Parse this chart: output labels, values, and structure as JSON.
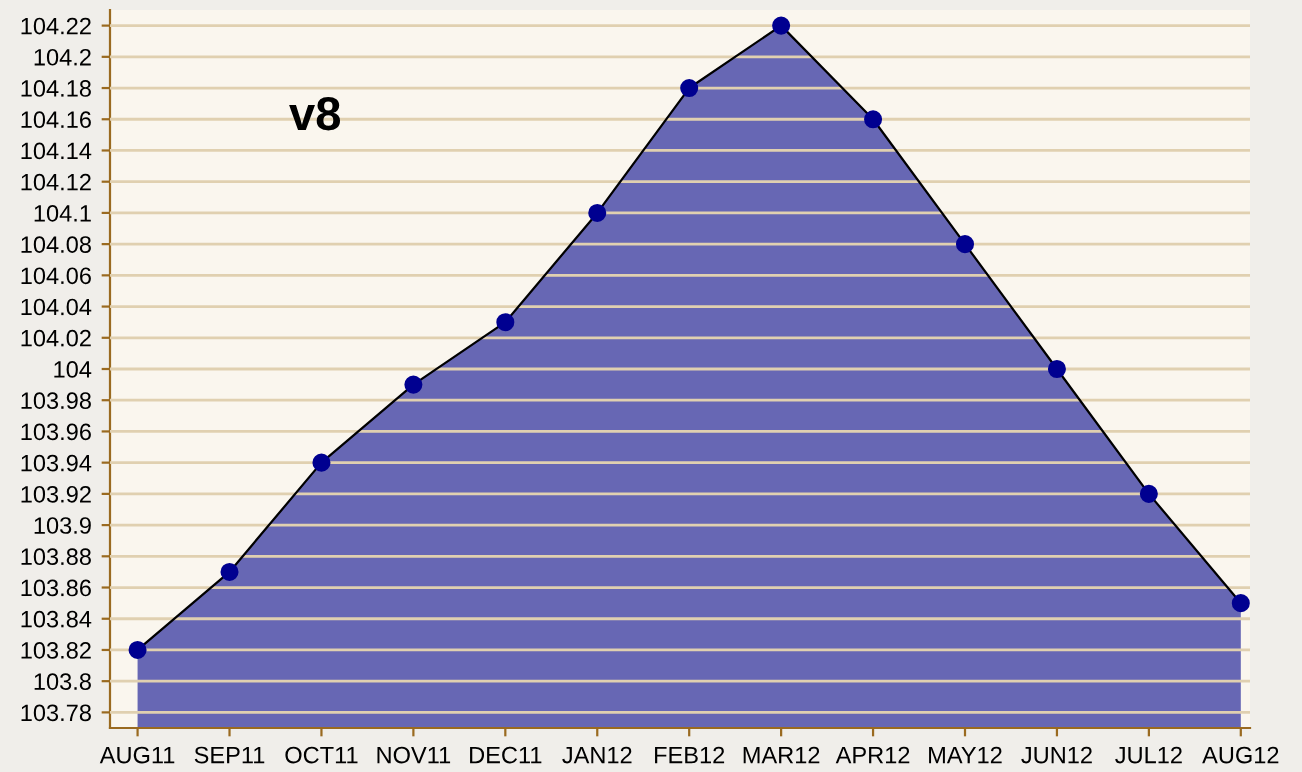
{
  "chart_data": {
    "type": "area",
    "title": "v8",
    "categories": [
      "AUG11",
      "SEP11",
      "OCT11",
      "NOV11",
      "DEC11",
      "JAN12",
      "FEB12",
      "MAR12",
      "APR12",
      "MAY12",
      "JUN12",
      "JUL12",
      "AUG12"
    ],
    "series": [
      {
        "color": "#5f5fb0",
        "values": [
          103.82,
          103.87,
          103.94,
          103.99,
          104.03,
          104.1,
          104.18,
          104.22,
          104.16,
          104.08,
          104.0,
          103.92,
          103.85
        ]
      }
    ],
    "marker": "circle",
    "ylim": [
      103.77,
      104.23
    ],
    "yticks": [
      103.78,
      103.8,
      103.82,
      103.84,
      103.86,
      103.88,
      103.9,
      103.92,
      103.94,
      103.96,
      103.98,
      104,
      104.02,
      104.04,
      104.06,
      104.08,
      104.1,
      104.12,
      104.14,
      104.16,
      104.18,
      104.2,
      104.22
    ],
    "grid": "y",
    "legend": false
  }
}
